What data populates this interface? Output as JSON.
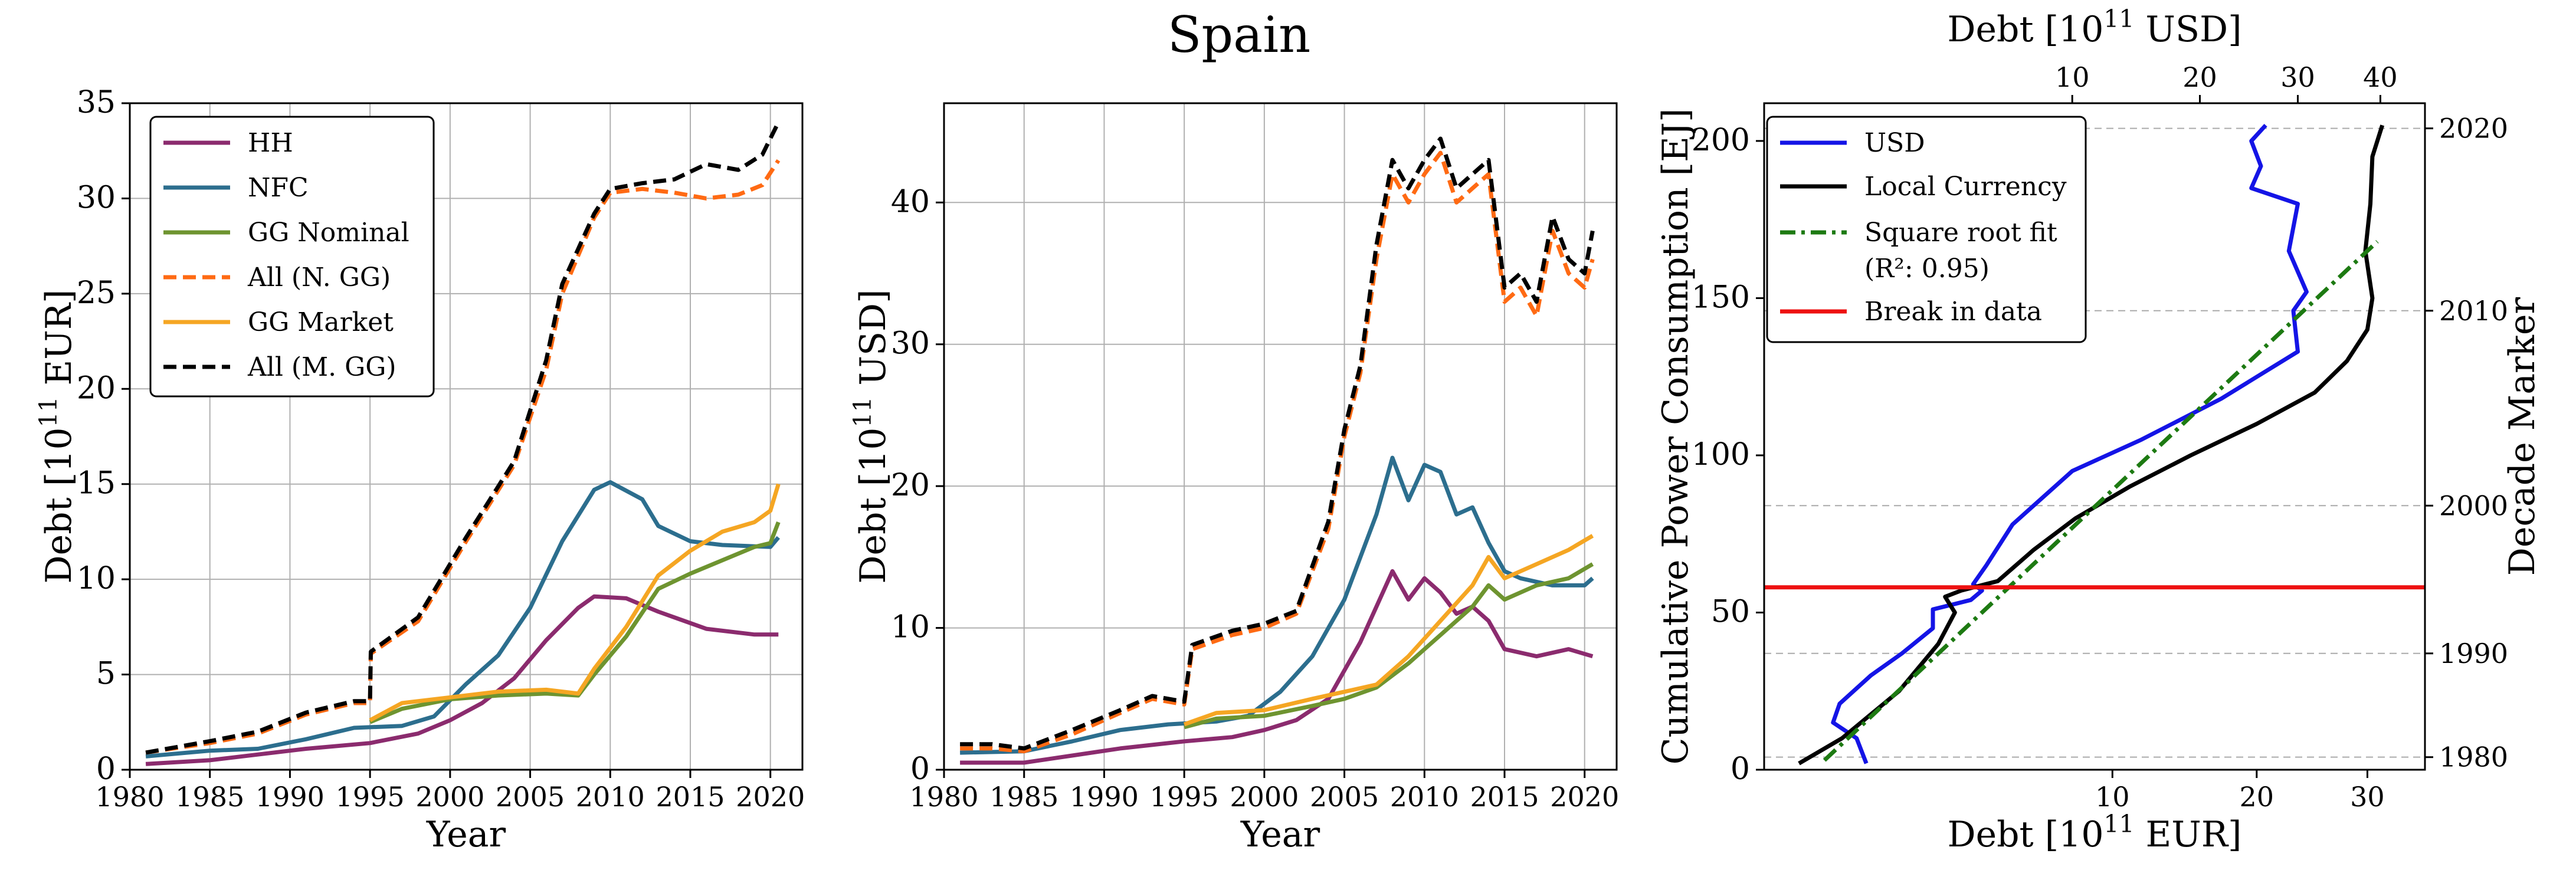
{
  "figure": {
    "suptitle": "Spain"
  },
  "chart_data": [
    {
      "type": "line",
      "panel": "left",
      "title": "",
      "xlabel": "Year",
      "ylabel": "Debt [10$^{11}$ EUR]",
      "ylabel_parts": {
        "pre": "Debt [10",
        "sup": "11",
        "post": " EUR]"
      },
      "xlim": [
        1980,
        2022
      ],
      "ylim": [
        0,
        35
      ],
      "xticks": [
        1980,
        1985,
        1990,
        1995,
        2000,
        2005,
        2010,
        2015,
        2020
      ],
      "yticks": [
        0,
        5,
        10,
        15,
        20,
        25,
        30,
        35
      ],
      "grid": true,
      "legend_position": "top-left",
      "series": [
        {
          "name": "HH",
          "color": "#8b2b6e",
          "style": "solid",
          "x": [
            1981,
            1985,
            1988,
            1991,
            1995,
            1998,
            2000,
            2002,
            2004,
            2006,
            2008,
            2009,
            2011,
            2013,
            2016,
            2019,
            2020.5
          ],
          "y": [
            0.3,
            0.5,
            0.8,
            1.1,
            1.4,
            1.9,
            2.6,
            3.5,
            4.8,
            6.8,
            8.5,
            9.1,
            9.0,
            8.3,
            7.4,
            7.1,
            7.1
          ]
        },
        {
          "name": "NFC",
          "color": "#2c6e8e",
          "style": "solid",
          "x": [
            1981,
            1985,
            1988,
            1991,
            1994,
            1997,
            1999,
            2001,
            2003,
            2005,
            2007,
            2009,
            2010,
            2012,
            2013,
            2015,
            2017,
            2020,
            2020.5
          ],
          "y": [
            0.7,
            1.0,
            1.1,
            1.6,
            2.2,
            2.3,
            2.8,
            4.5,
            6.0,
            8.5,
            12.0,
            14.7,
            15.1,
            14.2,
            12.8,
            12.0,
            11.8,
            11.7,
            12.2
          ]
        },
        {
          "name": "GG Nominal",
          "color": "#6e9430",
          "style": "solid",
          "x": [
            1995,
            1997,
            2000,
            2003,
            2006,
            2008,
            2009,
            2011,
            2013,
            2015,
            2017,
            2019,
            2020,
            2020.5
          ],
          "y": [
            2.5,
            3.2,
            3.7,
            3.9,
            4.0,
            3.9,
            5.0,
            7.0,
            9.5,
            10.3,
            11.0,
            11.7,
            11.9,
            13.0
          ]
        },
        {
          "name": "All (N. GG)",
          "color": "#ff6a13",
          "style": "dashed",
          "x": [
            1981,
            1985,
            1988,
            1991,
            1994,
            1995,
            1995.05,
            1998,
            2001,
            2004,
            2006,
            2007,
            2009,
            2010,
            2012,
            2014,
            2016,
            2018,
            2019.5,
            2020.5
          ],
          "y": [
            0.9,
            1.4,
            1.9,
            2.9,
            3.5,
            3.5,
            6.1,
            7.8,
            12.0,
            16.0,
            21.0,
            25.0,
            29.0,
            30.3,
            30.5,
            30.3,
            30.0,
            30.2,
            30.7,
            32.0
          ]
        },
        {
          "name": "GG Market",
          "color": "#f5a623",
          "style": "solid",
          "x": [
            1995,
            1997,
            2000,
            2003,
            2006,
            2008,
            2009,
            2011,
            2013,
            2015,
            2017,
            2019,
            2020,
            2020.5
          ],
          "y": [
            2.6,
            3.5,
            3.8,
            4.1,
            4.2,
            4.0,
            5.3,
            7.5,
            10.2,
            11.5,
            12.5,
            13.0,
            13.6,
            15.0
          ]
        },
        {
          "name": "All (M. GG)",
          "color": "#000000",
          "style": "dashed",
          "x": [
            1981,
            1985,
            1988,
            1991,
            1994,
            1995,
            1995.05,
            1998,
            2001,
            2004,
            2006,
            2007,
            2009,
            2010,
            2012,
            2014,
            2016,
            2018,
            2019.5,
            2020.5
          ],
          "y": [
            0.9,
            1.5,
            2.0,
            3.0,
            3.6,
            3.6,
            6.2,
            8.0,
            12.2,
            16.2,
            21.5,
            25.5,
            29.2,
            30.5,
            30.8,
            31.0,
            31.8,
            31.5,
            32.3,
            34.0
          ]
        }
      ]
    },
    {
      "type": "line",
      "panel": "middle",
      "title": "",
      "xlabel": "Year",
      "ylabel": "Debt [10$^{11}$ USD]",
      "ylabel_parts": {
        "pre": "Debt [10",
        "sup": "11",
        "post": " USD]"
      },
      "xlim": [
        1980,
        2022
      ],
      "ylim": [
        0,
        47
      ],
      "xticks": [
        1980,
        1985,
        1990,
        1995,
        2000,
        2005,
        2010,
        2015,
        2020
      ],
      "yticks": [
        0,
        10,
        20,
        30,
        40
      ],
      "grid": true,
      "series": [
        {
          "name": "HH",
          "color": "#8b2b6e",
          "style": "solid",
          "x": [
            1981,
            1985,
            1988,
            1991,
            1995,
            1998,
            2000,
            2002,
            2004,
            2006,
            2007,
            2008,
            2009,
            2010,
            2011,
            2012,
            2013,
            2014,
            2015,
            2017,
            2019,
            2020.5
          ],
          "y": [
            0.5,
            0.5,
            1.0,
            1.5,
            2.0,
            2.3,
            2.8,
            3.5,
            5.0,
            9.0,
            11.5,
            14.0,
            12.0,
            13.5,
            12.5,
            11.0,
            11.5,
            10.5,
            8.5,
            8.0,
            8.5,
            8.0
          ]
        },
        {
          "name": "NFC",
          "color": "#2c6e8e",
          "style": "solid",
          "x": [
            1981,
            1985,
            1988,
            1991,
            1994,
            1997,
            1999,
            2001,
            2003,
            2005,
            2007,
            2008,
            2009,
            2010,
            2011,
            2012,
            2013,
            2014,
            2015,
            2016,
            2018,
            2020,
            2020.5
          ],
          "y": [
            1.2,
            1.3,
            2.0,
            2.8,
            3.2,
            3.4,
            3.8,
            5.5,
            8.0,
            12.0,
            18.0,
            22.0,
            19.0,
            21.5,
            21.0,
            18.0,
            18.5,
            16.0,
            14.0,
            13.5,
            13.0,
            13.0,
            13.5
          ]
        },
        {
          "name": "GG Nominal",
          "color": "#6e9430",
          "style": "solid",
          "x": [
            1995,
            1997,
            2000,
            2003,
            2005,
            2007,
            2009,
            2011,
            2013,
            2014,
            2015,
            2017,
            2019,
            2020.5
          ],
          "y": [
            3.0,
            3.6,
            3.8,
            4.5,
            5.0,
            5.8,
            7.5,
            9.5,
            11.5,
            13.0,
            12.0,
            13.0,
            13.5,
            14.5
          ]
        },
        {
          "name": "All (N. GG)",
          "color": "#ff6a13",
          "style": "dashed",
          "x": [
            1981,
            1983,
            1985,
            1988,
            1991,
            1993,
            1995,
            1995.5,
            1998,
            2000,
            2002,
            2004,
            2005,
            2006,
            2007,
            2008,
            2009,
            2010,
            2011,
            2012,
            2013,
            2014,
            2015,
            2016,
            2017,
            2018,
            2019,
            2020,
            2020.5
          ],
          "y": [
            1.5,
            1.5,
            1.3,
            2.5,
            4.0,
            5.0,
            4.6,
            8.5,
            9.5,
            10.0,
            11.0,
            17.0,
            23.5,
            28.0,
            36.0,
            42.0,
            40.0,
            42.0,
            43.5,
            40.0,
            41.0,
            42.0,
            33.0,
            34.0,
            32.0,
            38.0,
            35.0,
            34.0,
            36.0
          ]
        },
        {
          "name": "GG Market",
          "color": "#f5a623",
          "style": "solid",
          "x": [
            1995,
            1997,
            2000,
            2003,
            2005,
            2007,
            2009,
            2011,
            2013,
            2014,
            2015,
            2017,
            2019,
            2020.5
          ],
          "y": [
            3.2,
            4.0,
            4.2,
            5.0,
            5.5,
            6.0,
            8.0,
            10.5,
            13.0,
            15.0,
            13.5,
            14.5,
            15.5,
            16.5
          ]
        },
        {
          "name": "All (M. GG)",
          "color": "#000000",
          "style": "dashed",
          "x": [
            1981,
            1983,
            1985,
            1988,
            1991,
            1993,
            1995,
            1995.5,
            1998,
            2000,
            2002,
            2004,
            2005,
            2006,
            2007,
            2008,
            2009,
            2010,
            2011,
            2012,
            2013,
            2014,
            2015,
            2016,
            2017,
            2018,
            2019,
            2020,
            2020.5
          ],
          "y": [
            1.8,
            1.8,
            1.5,
            2.8,
            4.2,
            5.2,
            4.8,
            8.8,
            9.8,
            10.3,
            11.2,
            17.5,
            24.0,
            28.5,
            37.0,
            43.0,
            41.0,
            43.0,
            44.5,
            41.0,
            42.0,
            43.0,
            34.0,
            35.0,
            33.0,
            39.0,
            36.0,
            35.0,
            38.0
          ]
        }
      ]
    },
    {
      "type": "line",
      "panel": "right",
      "title": "",
      "xlabel": "Debt [10$^{11}$ EUR]",
      "xlabel_parts": {
        "pre": "Debt [10",
        "sup": "11",
        "post": " EUR]"
      },
      "xlabel_top": "Debt [10$^{11}$ USD]",
      "xlabel_top_parts": {
        "pre": "Debt [10",
        "sup": "11",
        "post": " USD]"
      },
      "ylabel": "Cumulative Power Consumption [EJ]",
      "ylabel_right": "Decade Marker",
      "xscale": "sqrt",
      "xlim": [
        0,
        36
      ],
      "ylim": [
        0,
        212
      ],
      "xticks_bottom": [
        10,
        20,
        30
      ],
      "xticks_top": [
        10,
        20,
        30,
        40
      ],
      "xlim_top": [
        0,
        46
      ],
      "yticks": [
        0,
        50,
        100,
        150,
        200
      ],
      "decade_markers": [
        {
          "label": "1980",
          "y": 4
        },
        {
          "label": "1990",
          "y": 37
        },
        {
          "label": "2000",
          "y": 84
        },
        {
          "label": "2010",
          "y": 146
        },
        {
          "label": "2020",
          "y": 204
        }
      ],
      "break_y": 58,
      "legend_position": "top-left",
      "series": [
        {
          "name": "USD",
          "color": "#1414e6",
          "style": "solid",
          "axis": "top",
          "x": [
            1.1,
            0.9,
            0.5,
            0.6,
            1.2,
            2.0,
            3.0,
            3.0,
            4.5,
            5.0,
            4.6,
            5.2,
            6.5,
            10.0,
            15.0,
            22.0,
            30.0,
            29.5,
            31.0,
            29.0,
            30.0,
            25.0,
            26.0,
            25.0,
            26.5
          ],
          "y": [
            2,
            10,
            15,
            21,
            30,
            37,
            45,
            51,
            54,
            57,
            59,
            65,
            78,
            95,
            105,
            118,
            133,
            146,
            152,
            165,
            180,
            185,
            192,
            200,
            205
          ]
        },
        {
          "name": "Local Currency",
          "color": "#000000",
          "style": "solid",
          "axis": "bottom",
          "x": [
            0.1,
            0.5,
            1.5,
            2.5,
            3.0,
            2.7,
            3.2,
            4.5,
            6.0,
            8.0,
            11.0,
            15.0,
            20.0,
            25.0,
            28.0,
            30.0,
            30.5,
            29.8,
            30.3,
            30.5,
            31.5
          ],
          "y": [
            2,
            10,
            25,
            40,
            50,
            55,
            57,
            60,
            70,
            80,
            90,
            100,
            110,
            120,
            130,
            140,
            150,
            165,
            180,
            195,
            205
          ]
        },
        {
          "name": "Square root fit ($R^2$: 0.95)",
          "color": "#1d7a12",
          "style": "dashdot",
          "axis": "bottom",
          "x": [
            0.3,
            31.0
          ],
          "y": [
            3,
            168
          ]
        },
        {
          "name": "Break in data",
          "color": "#ee1111",
          "style": "solid",
          "axis": "bottom",
          "x": [
            0,
            36
          ],
          "y": [
            58,
            58
          ]
        }
      ]
    }
  ],
  "legends": {
    "left": [
      {
        "label": "HH",
        "color": "#8b2b6e",
        "style": "solid"
      },
      {
        "label": "NFC",
        "color": "#2c6e8e",
        "style": "solid"
      },
      {
        "label": "GG Nominal",
        "color": "#6e9430",
        "style": "solid"
      },
      {
        "label": "All (N. GG)",
        "color": "#ff6a13",
        "style": "dashed"
      },
      {
        "label": "GG Market",
        "color": "#f5a623",
        "style": "solid"
      },
      {
        "label": "All (M. GG)",
        "color": "#000000",
        "style": "dashed"
      }
    ],
    "right": [
      {
        "label": "USD",
        "color": "#1414e6",
        "style": "solid"
      },
      {
        "label": "Local Currency",
        "color": "#000000",
        "style": "solid"
      },
      {
        "label": "Square root fit",
        "label2": "(R²: 0.95)",
        "color": "#1d7a12",
        "style": "dashdot"
      },
      {
        "label": "Break in data",
        "color": "#ee1111",
        "style": "solid"
      }
    ]
  }
}
